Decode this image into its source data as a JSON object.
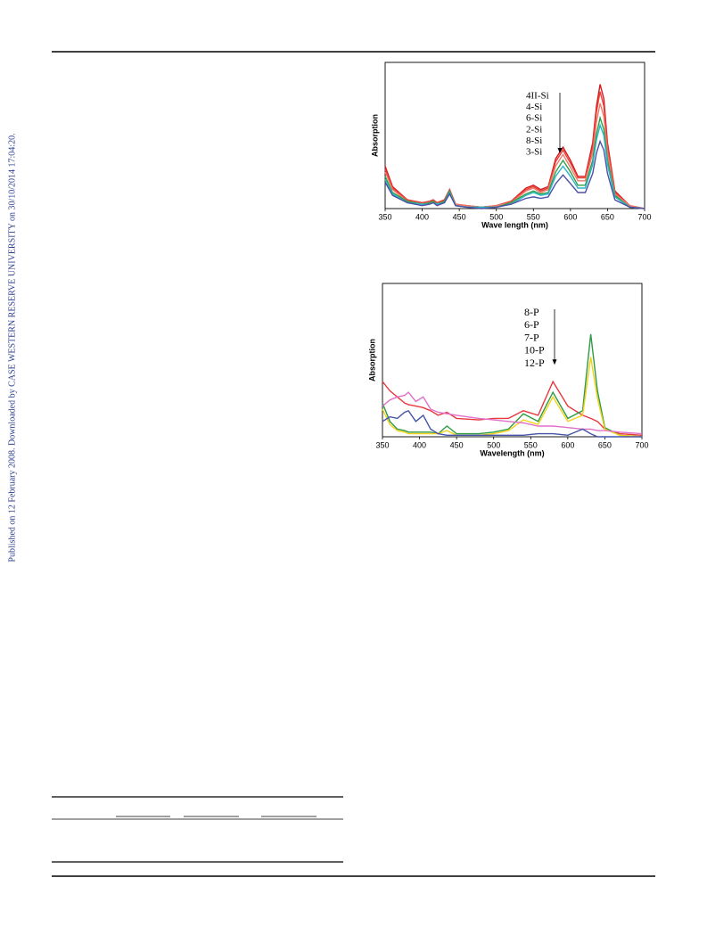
{
  "side_note": "Published on 12 February 2008. Downloaded by CASE WESTERN RESERVE UNIVERSITY on 30/10/2014 17:04:20.",
  "chart_data": [
    {
      "type": "line",
      "x_label": "Wave length (nm)",
      "y_label": "Absorption",
      "x": [
        350,
        360,
        380,
        400,
        410,
        415,
        420,
        430,
        437,
        445,
        460,
        480,
        500,
        520,
        540,
        550,
        560,
        570,
        580,
        590,
        600,
        610,
        620,
        630,
        635,
        640,
        645,
        650,
        660,
        680,
        700
      ],
      "xlim": [
        350,
        700
      ],
      "xticks": [
        350,
        400,
        450,
        500,
        550,
        600,
        650,
        700
      ],
      "ylim": [
        0,
        1
      ],
      "series": [
        {
          "name": "4II-Si",
          "color": "#d7191c",
          "values": [
            0.29,
            0.15,
            0.06,
            0.04,
            0.05,
            0.06,
            0.04,
            0.06,
            0.13,
            0.03,
            0.02,
            0.01,
            0.02,
            0.05,
            0.14,
            0.16,
            0.13,
            0.15,
            0.34,
            0.42,
            0.33,
            0.22,
            0.22,
            0.45,
            0.7,
            0.85,
            0.75,
            0.45,
            0.12,
            0.02,
            0.0
          ]
        },
        {
          "name": "4-Si",
          "color": "#e8413c",
          "values": [
            0.27,
            0.14,
            0.06,
            0.04,
            0.05,
            0.06,
            0.04,
            0.06,
            0.13,
            0.03,
            0.02,
            0.01,
            0.02,
            0.05,
            0.13,
            0.15,
            0.12,
            0.14,
            0.32,
            0.4,
            0.31,
            0.21,
            0.21,
            0.42,
            0.66,
            0.8,
            0.7,
            0.42,
            0.11,
            0.02,
            0.0
          ]
        },
        {
          "name": "6-Si",
          "color": "#f07a6a",
          "values": [
            0.25,
            0.13,
            0.05,
            0.03,
            0.04,
            0.05,
            0.03,
            0.05,
            0.12,
            0.03,
            0.02,
            0.01,
            0.02,
            0.04,
            0.12,
            0.14,
            0.11,
            0.13,
            0.29,
            0.37,
            0.28,
            0.19,
            0.19,
            0.38,
            0.59,
            0.72,
            0.63,
            0.38,
            0.1,
            0.02,
            0.0
          ]
        },
        {
          "name": "2-Si",
          "color": "#2e9e4a",
          "values": [
            0.22,
            0.11,
            0.05,
            0.03,
            0.04,
            0.05,
            0.03,
            0.05,
            0.12,
            0.02,
            0.01,
            0.01,
            0.01,
            0.04,
            0.1,
            0.12,
            0.1,
            0.11,
            0.25,
            0.33,
            0.25,
            0.16,
            0.16,
            0.33,
            0.51,
            0.62,
            0.54,
            0.33,
            0.09,
            0.01,
            0.0
          ]
        },
        {
          "name": "8-Si",
          "color": "#2bb6c4",
          "values": [
            0.2,
            0.1,
            0.04,
            0.03,
            0.03,
            0.04,
            0.03,
            0.04,
            0.11,
            0.02,
            0.01,
            0.01,
            0.01,
            0.03,
            0.09,
            0.11,
            0.09,
            0.1,
            0.22,
            0.29,
            0.22,
            0.14,
            0.14,
            0.3,
            0.47,
            0.57,
            0.5,
            0.3,
            0.08,
            0.01,
            0.0
          ]
        },
        {
          "name": "3-Si",
          "color": "#4b4fa6",
          "values": [
            0.18,
            0.09,
            0.04,
            0.02,
            0.03,
            0.04,
            0.02,
            0.04,
            0.1,
            0.02,
            0.01,
            0.0,
            0.01,
            0.03,
            0.07,
            0.08,
            0.07,
            0.08,
            0.17,
            0.23,
            0.17,
            0.11,
            0.11,
            0.24,
            0.38,
            0.46,
            0.4,
            0.24,
            0.06,
            0.01,
            0.0
          ]
        }
      ]
    },
    {
      "type": "line",
      "x_label": "Wavelength (nm)",
      "y_label": "Absorption",
      "x": [
        350,
        360,
        370,
        380,
        385,
        395,
        405,
        415,
        425,
        437,
        450,
        480,
        500,
        520,
        540,
        560,
        580,
        600,
        620,
        631,
        640,
        650,
        670,
        700
      ],
      "xlim": [
        350,
        700
      ],
      "xticks": [
        350,
        400,
        450,
        500,
        550,
        600,
        650,
        700
      ],
      "ylim": [
        0,
        1
      ],
      "series": [
        {
          "name": "8-P",
          "color": "#e8383d",
          "values": [
            0.36,
            0.3,
            0.26,
            0.22,
            0.21,
            0.2,
            0.19,
            0.17,
            0.14,
            0.16,
            0.12,
            0.11,
            0.12,
            0.12,
            0.17,
            0.14,
            0.36,
            0.2,
            0.14,
            0.12,
            0.1,
            0.05,
            0.02,
            0.01
          ]
        },
        {
          "name": "6-P",
          "color": "#2f9a45",
          "values": [
            0.22,
            0.1,
            0.05,
            0.04,
            0.03,
            0.03,
            0.03,
            0.03,
            0.02,
            0.07,
            0.02,
            0.02,
            0.03,
            0.05,
            0.15,
            0.1,
            0.29,
            0.12,
            0.17,
            0.67,
            0.3,
            0.06,
            0.01,
            0.0
          ]
        },
        {
          "name": "7-P",
          "color": "#f2d21b",
          "values": [
            0.18,
            0.08,
            0.04,
            0.03,
            0.02,
            0.02,
            0.02,
            0.02,
            0.02,
            0.04,
            0.01,
            0.01,
            0.02,
            0.04,
            0.11,
            0.08,
            0.26,
            0.1,
            0.14,
            0.52,
            0.25,
            0.05,
            0.01,
            0.0
          ]
        },
        {
          "name": "10-P",
          "color": "#e070c8",
          "values": [
            0.2,
            0.24,
            0.26,
            0.27,
            0.29,
            0.23,
            0.26,
            0.18,
            0.16,
            0.15,
            0.14,
            0.12,
            0.11,
            0.1,
            0.09,
            0.07,
            0.07,
            0.06,
            0.05,
            0.05,
            0.04,
            0.04,
            0.03,
            0.02
          ]
        },
        {
          "name": "12-P",
          "color": "#4453a8",
          "values": [
            0.1,
            0.13,
            0.12,
            0.16,
            0.17,
            0.1,
            0.14,
            0.05,
            0.02,
            0.01,
            0.01,
            0.01,
            0.01,
            0.01,
            0.01,
            0.02,
            0.02,
            0.01,
            0.05,
            0.02,
            0.0,
            0.0,
            0.0,
            0.0
          ]
        }
      ]
    }
  ]
}
